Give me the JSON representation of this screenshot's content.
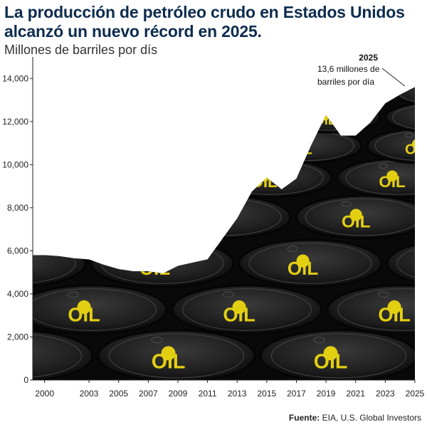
{
  "title_line1": "La producción de petróleo crudo en Estados Unidos",
  "title_line2": "alcanzó un nuevo récord en 2025.",
  "subtitle": "Millones de barriles por dís",
  "annotation": {
    "year": "2025",
    "line1": "13,6 millones de",
    "line2": "barriles por día"
  },
  "barrel_label": "OIL",
  "source_label": "Fuente:",
  "source_text": "EIA, U.S. Global Investors",
  "chart_data": {
    "type": "area",
    "title": "La producción de petróleo crudo en Estados Unidos alcanzó un nuevo récord en 2025.",
    "ylabel": "Millones de barriles por dís",
    "xlim": [
      1999.2,
      2025
    ],
    "ylim": [
      0,
      15000
    ],
    "y_ticks": [
      0,
      2000,
      4000,
      6000,
      8000,
      10000,
      12000,
      14000
    ],
    "y_tick_labels": [
      "0",
      "2,000",
      "4,000",
      "6,000",
      "8,000",
      "10,000",
      "12,000",
      "14,000"
    ],
    "x_ticks": [
      2000,
      2003,
      2005,
      2007,
      2009,
      2011,
      2013,
      2015,
      2017,
      2019,
      2021,
      2023,
      2025
    ],
    "x_tick_labels": [
      "2000",
      "2003",
      "2005",
      "2007",
      "2009",
      "2011",
      "2013",
      "2015",
      "2017",
      "2019",
      "2021",
      "2023",
      "2025"
    ],
    "series": [
      {
        "x": [
          1999.2,
          2000,
          2001,
          2002,
          2003,
          2004,
          2005,
          2006,
          2007,
          2008,
          2009,
          2010,
          2011,
          2012,
          2013,
          2014,
          2015,
          2016,
          2017,
          2018,
          2019,
          2020,
          2021,
          2022,
          2023,
          2024,
          2025
        ],
        "y": [
          5800,
          5800,
          5750,
          5650,
          5600,
          5350,
          5150,
          5050,
          5050,
          4950,
          5300,
          5450,
          5600,
          6550,
          7500,
          8750,
          9400,
          8850,
          9350,
          10900,
          12300,
          11350,
          11350,
          11950,
          12850,
          13250,
          13600
        ]
      }
    ],
    "fill_pattern": "oil barrels",
    "grid": false
  }
}
